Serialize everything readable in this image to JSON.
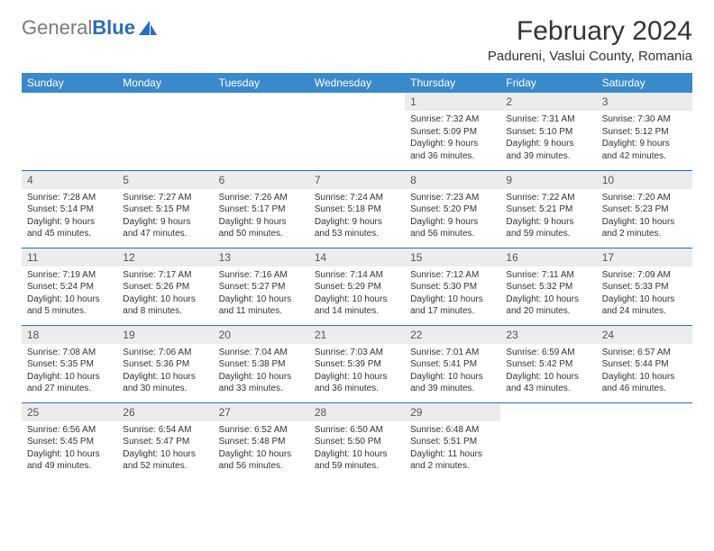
{
  "logo": {
    "text_gray": "General",
    "text_blue": "Blue",
    "icon_color": "#2a6db8"
  },
  "title": "February 2024",
  "location": "Padureni, Vaslui County, Romania",
  "header_bg": "#3a8acb",
  "daynum_bg": "#ececec",
  "border_color": "#2a6db8",
  "weekdays": [
    "Sunday",
    "Monday",
    "Tuesday",
    "Wednesday",
    "Thursday",
    "Friday",
    "Saturday"
  ],
  "weeks": [
    [
      null,
      null,
      null,
      null,
      {
        "n": "1",
        "sr": "Sunrise: 7:32 AM",
        "ss": "Sunset: 5:09 PM",
        "dl1": "Daylight: 9 hours",
        "dl2": "and 36 minutes."
      },
      {
        "n": "2",
        "sr": "Sunrise: 7:31 AM",
        "ss": "Sunset: 5:10 PM",
        "dl1": "Daylight: 9 hours",
        "dl2": "and 39 minutes."
      },
      {
        "n": "3",
        "sr": "Sunrise: 7:30 AM",
        "ss": "Sunset: 5:12 PM",
        "dl1": "Daylight: 9 hours",
        "dl2": "and 42 minutes."
      }
    ],
    [
      {
        "n": "4",
        "sr": "Sunrise: 7:28 AM",
        "ss": "Sunset: 5:14 PM",
        "dl1": "Daylight: 9 hours",
        "dl2": "and 45 minutes."
      },
      {
        "n": "5",
        "sr": "Sunrise: 7:27 AM",
        "ss": "Sunset: 5:15 PM",
        "dl1": "Daylight: 9 hours",
        "dl2": "and 47 minutes."
      },
      {
        "n": "6",
        "sr": "Sunrise: 7:26 AM",
        "ss": "Sunset: 5:17 PM",
        "dl1": "Daylight: 9 hours",
        "dl2": "and 50 minutes."
      },
      {
        "n": "7",
        "sr": "Sunrise: 7:24 AM",
        "ss": "Sunset: 5:18 PM",
        "dl1": "Daylight: 9 hours",
        "dl2": "and 53 minutes."
      },
      {
        "n": "8",
        "sr": "Sunrise: 7:23 AM",
        "ss": "Sunset: 5:20 PM",
        "dl1": "Daylight: 9 hours",
        "dl2": "and 56 minutes."
      },
      {
        "n": "9",
        "sr": "Sunrise: 7:22 AM",
        "ss": "Sunset: 5:21 PM",
        "dl1": "Daylight: 9 hours",
        "dl2": "and 59 minutes."
      },
      {
        "n": "10",
        "sr": "Sunrise: 7:20 AM",
        "ss": "Sunset: 5:23 PM",
        "dl1": "Daylight: 10 hours",
        "dl2": "and 2 minutes."
      }
    ],
    [
      {
        "n": "11",
        "sr": "Sunrise: 7:19 AM",
        "ss": "Sunset: 5:24 PM",
        "dl1": "Daylight: 10 hours",
        "dl2": "and 5 minutes."
      },
      {
        "n": "12",
        "sr": "Sunrise: 7:17 AM",
        "ss": "Sunset: 5:26 PM",
        "dl1": "Daylight: 10 hours",
        "dl2": "and 8 minutes."
      },
      {
        "n": "13",
        "sr": "Sunrise: 7:16 AM",
        "ss": "Sunset: 5:27 PM",
        "dl1": "Daylight: 10 hours",
        "dl2": "and 11 minutes."
      },
      {
        "n": "14",
        "sr": "Sunrise: 7:14 AM",
        "ss": "Sunset: 5:29 PM",
        "dl1": "Daylight: 10 hours",
        "dl2": "and 14 minutes."
      },
      {
        "n": "15",
        "sr": "Sunrise: 7:12 AM",
        "ss": "Sunset: 5:30 PM",
        "dl1": "Daylight: 10 hours",
        "dl2": "and 17 minutes."
      },
      {
        "n": "16",
        "sr": "Sunrise: 7:11 AM",
        "ss": "Sunset: 5:32 PM",
        "dl1": "Daylight: 10 hours",
        "dl2": "and 20 minutes."
      },
      {
        "n": "17",
        "sr": "Sunrise: 7:09 AM",
        "ss": "Sunset: 5:33 PM",
        "dl1": "Daylight: 10 hours",
        "dl2": "and 24 minutes."
      }
    ],
    [
      {
        "n": "18",
        "sr": "Sunrise: 7:08 AM",
        "ss": "Sunset: 5:35 PM",
        "dl1": "Daylight: 10 hours",
        "dl2": "and 27 minutes."
      },
      {
        "n": "19",
        "sr": "Sunrise: 7:06 AM",
        "ss": "Sunset: 5:36 PM",
        "dl1": "Daylight: 10 hours",
        "dl2": "and 30 minutes."
      },
      {
        "n": "20",
        "sr": "Sunrise: 7:04 AM",
        "ss": "Sunset: 5:38 PM",
        "dl1": "Daylight: 10 hours",
        "dl2": "and 33 minutes."
      },
      {
        "n": "21",
        "sr": "Sunrise: 7:03 AM",
        "ss": "Sunset: 5:39 PM",
        "dl1": "Daylight: 10 hours",
        "dl2": "and 36 minutes."
      },
      {
        "n": "22",
        "sr": "Sunrise: 7:01 AM",
        "ss": "Sunset: 5:41 PM",
        "dl1": "Daylight: 10 hours",
        "dl2": "and 39 minutes."
      },
      {
        "n": "23",
        "sr": "Sunrise: 6:59 AM",
        "ss": "Sunset: 5:42 PM",
        "dl1": "Daylight: 10 hours",
        "dl2": "and 43 minutes."
      },
      {
        "n": "24",
        "sr": "Sunrise: 6:57 AM",
        "ss": "Sunset: 5:44 PM",
        "dl1": "Daylight: 10 hours",
        "dl2": "and 46 minutes."
      }
    ],
    [
      {
        "n": "25",
        "sr": "Sunrise: 6:56 AM",
        "ss": "Sunset: 5:45 PM",
        "dl1": "Daylight: 10 hours",
        "dl2": "and 49 minutes."
      },
      {
        "n": "26",
        "sr": "Sunrise: 6:54 AM",
        "ss": "Sunset: 5:47 PM",
        "dl1": "Daylight: 10 hours",
        "dl2": "and 52 minutes."
      },
      {
        "n": "27",
        "sr": "Sunrise: 6:52 AM",
        "ss": "Sunset: 5:48 PM",
        "dl1": "Daylight: 10 hours",
        "dl2": "and 56 minutes."
      },
      {
        "n": "28",
        "sr": "Sunrise: 6:50 AM",
        "ss": "Sunset: 5:50 PM",
        "dl1": "Daylight: 10 hours",
        "dl2": "and 59 minutes."
      },
      {
        "n": "29",
        "sr": "Sunrise: 6:48 AM",
        "ss": "Sunset: 5:51 PM",
        "dl1": "Daylight: 11 hours",
        "dl2": "and 2 minutes."
      },
      null,
      null
    ]
  ]
}
